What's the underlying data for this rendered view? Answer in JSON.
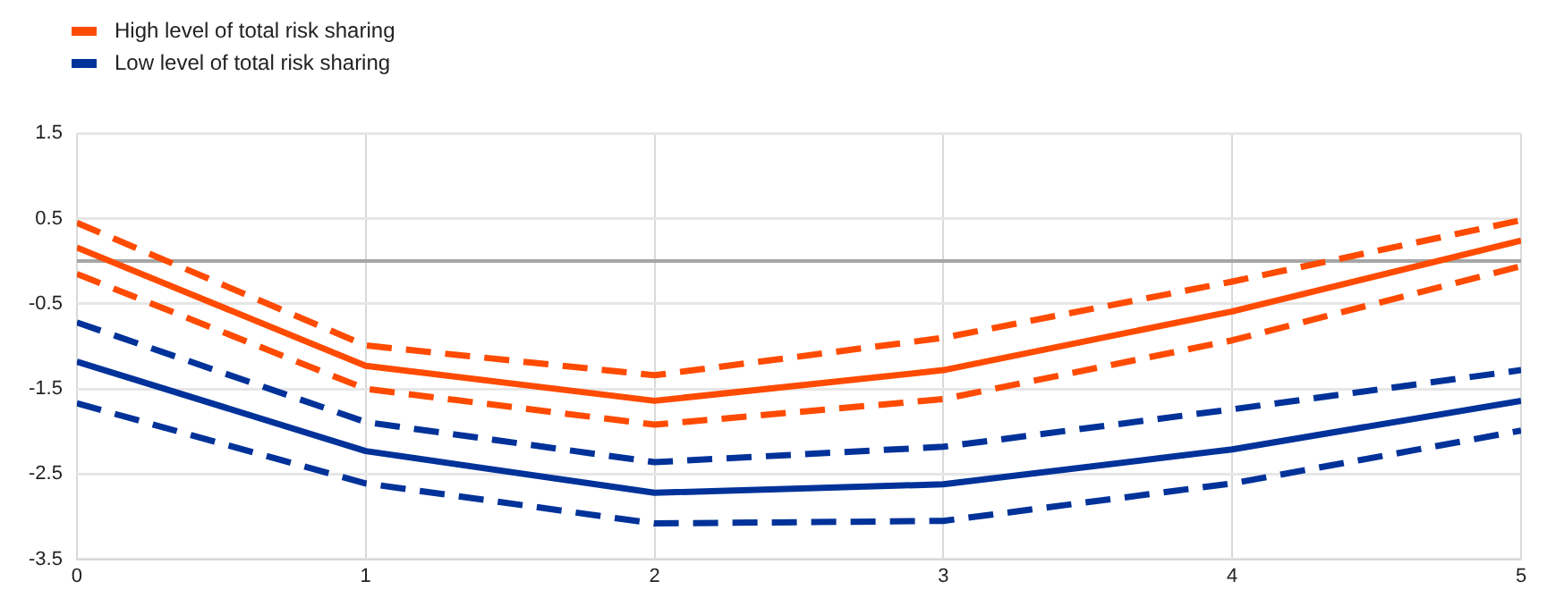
{
  "chart_data": {
    "type": "line",
    "x": [
      0,
      1,
      2,
      3,
      4,
      5
    ],
    "xlim": [
      0,
      5
    ],
    "xticks": [
      0,
      1,
      2,
      3,
      4,
      5
    ],
    "ylim": [
      -3.5,
      1.5
    ],
    "yticks": [
      -3.5,
      -2.5,
      -1.5,
      -0.5,
      0.5,
      1.5
    ],
    "grid": true,
    "legend": "top left",
    "marker": "none",
    "ref_lines": [
      {
        "axis": "y",
        "value": 0,
        "color": "#a6a6a6"
      }
    ],
    "series": [
      {
        "name": "High level of total risk sharing",
        "color": "#ff4b00",
        "line_style": "solid",
        "values": [
          0.16,
          -1.23,
          -1.64,
          -1.28,
          -0.59,
          0.24
        ]
      },
      {
        "color": "#ff4b00",
        "line_style": "dashed",
        "values": [
          0.45,
          -0.99,
          -1.34,
          -0.9,
          -0.24,
          0.48
        ]
      },
      {
        "color": "#ff4b00",
        "line_style": "dashed",
        "values": [
          -0.15,
          -1.5,
          -1.92,
          -1.62,
          -0.93,
          -0.06
        ]
      },
      {
        "name": "Low level of total risk sharing",
        "color": "#003299",
        "line_style": "solid",
        "values": [
          -1.18,
          -2.23,
          -2.72,
          -2.62,
          -2.21,
          -1.64
        ]
      },
      {
        "color": "#003299",
        "line_style": "dashed",
        "values": [
          -0.72,
          -1.89,
          -2.36,
          -2.18,
          -1.74,
          -1.28
        ]
      },
      {
        "color": "#003299",
        "line_style": "dashed",
        "values": [
          -1.67,
          -2.61,
          -3.08,
          -3.05,
          -2.61,
          -1.99
        ]
      }
    ]
  }
}
